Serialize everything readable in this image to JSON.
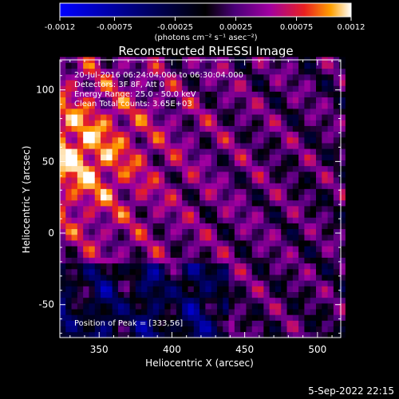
{
  "chart_data": {
    "type": "heatmap",
    "title": "Reconstructed RHESSI Image",
    "xlabel": "Heliocentric X (arcsec)",
    "ylabel": "Heliocentric Y (arcsec)",
    "xlim": [
      323,
      516
    ],
    "ylim": [
      -73,
      121
    ],
    "x_ticks": [
      350,
      400,
      450,
      500
    ],
    "y_ticks": [
      -50,
      0,
      50,
      100
    ],
    "colorbar": {
      "vmin": -0.0012,
      "vmax": 0.0012,
      "tick_values": [
        -0.0012,
        -0.00075,
        -0.00025,
        0.00025,
        0.00075,
        0.0012
      ],
      "tick_labels": [
        "-0.0012",
        "-0.00075",
        "-0.00025",
        "0.00025",
        "0.00075",
        "0.0012"
      ],
      "unit_label": "(photons cm⁻² s⁻¹ asec⁻²)"
    },
    "annotations": [
      "20-Jul-2016 06:24:04.000 to 06:30:04.000",
      "Detectors: 3F 8F, Att 0",
      "Energy Range: 25.0 - 50.0 keV",
      "Clean     Total counts: 3.65E+03"
    ],
    "peak_text": "Position of Peak = [333,56]",
    "peak": [
      333,
      56
    ],
    "grid": false,
    "colormap": [
      "#0000ff",
      "#000000",
      "#400070",
      "#9000a0",
      "#d00030",
      "#ff5000",
      "#ffc000",
      "#ffffff"
    ]
  },
  "timestamp": "5-Sep-2022 22:15"
}
